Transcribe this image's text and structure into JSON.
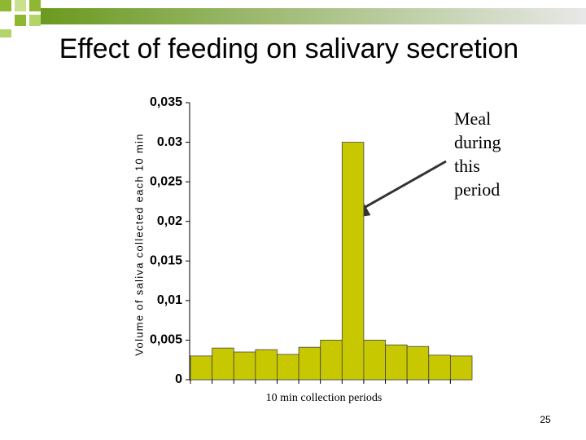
{
  "title": "Effect of feeding on salivary secretion",
  "slide_number": "25",
  "chart_data": {
    "type": "bar",
    "ylabel": "Volume of saliva collected each 10 min",
    "xlabel": "10 min collection periods",
    "annotation": "Meal during this period",
    "values": [
      0.003,
      0.004,
      0.0035,
      0.0038,
      0.0032,
      0.0041,
      0.005,
      0.03,
      0.005,
      0.0044,
      0.0042,
      0.0031,
      0.003
    ],
    "color": "#c8c800",
    "ylim": [
      0,
      0.035
    ],
    "yticks": [
      0,
      {
        "value": 0.005,
        "label": "0,005"
      },
      {
        "value": 0.01,
        "label": "0,01"
      },
      {
        "value": 0.015,
        "label": "0,015"
      },
      {
        "value": 0.02,
        "label": "0,02"
      },
      {
        "value": 0.025,
        "label": "0,025"
      },
      0.03,
      {
        "value": 0.035,
        "label": "0,035"
      }
    ]
  }
}
